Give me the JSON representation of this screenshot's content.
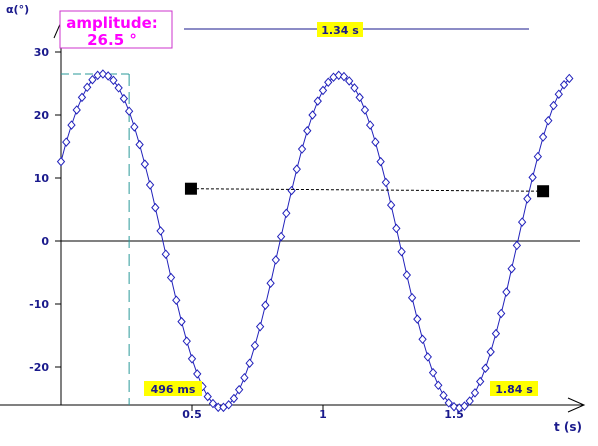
{
  "chart_data": {
    "type": "scatter",
    "title": "",
    "xlabel": "t (s)",
    "ylabel": "α(°)",
    "xlim": [
      -0.02,
      2.0
    ],
    "ylim": [
      -26,
      35
    ],
    "x_ticks": [
      {
        "value": 0.5,
        "label": "0.5"
      },
      {
        "value": 1.0,
        "label": "1"
      },
      {
        "value": 1.5,
        "label": "1.5"
      }
    ],
    "y_ticks": [
      {
        "value": 30,
        "label": "30"
      },
      {
        "value": 20,
        "label": "20"
      },
      {
        "value": 10,
        "label": "10"
      },
      {
        "value": 0,
        "label": "0"
      },
      {
        "value": -10,
        "label": "-10"
      },
      {
        "value": -20,
        "label": "-20"
      }
    ],
    "grid": false,
    "series": [
      {
        "marker": "diamond",
        "color": "#2222bb",
        "x": [
          0.0,
          0.02,
          0.04,
          0.06,
          0.08,
          0.1,
          0.12,
          0.14,
          0.16,
          0.18,
          0.2,
          0.22,
          0.24,
          0.26,
          0.28,
          0.3,
          0.32,
          0.34,
          0.36,
          0.38,
          0.4,
          0.42,
          0.44,
          0.46,
          0.48,
          0.5,
          0.52,
          0.54,
          0.56,
          0.58,
          0.6,
          0.62,
          0.64,
          0.66,
          0.68,
          0.7,
          0.72,
          0.74,
          0.76,
          0.78,
          0.8,
          0.82,
          0.84,
          0.86,
          0.88,
          0.9,
          0.92,
          0.94,
          0.96,
          0.98,
          1.0,
          1.02,
          1.04,
          1.06,
          1.08,
          1.1,
          1.12,
          1.14,
          1.16,
          1.18,
          1.2,
          1.22,
          1.24,
          1.26,
          1.28,
          1.3,
          1.32,
          1.34,
          1.36,
          1.38,
          1.4,
          1.42,
          1.44,
          1.46,
          1.48,
          1.5,
          1.52,
          1.54,
          1.56,
          1.58,
          1.6,
          1.62,
          1.64,
          1.66,
          1.68,
          1.7,
          1.72,
          1.74,
          1.76,
          1.78,
          1.8,
          1.82,
          1.84,
          1.86,
          1.88,
          1.9,
          1.92,
          1.94
        ],
        "y": [
          12.6,
          15.7,
          18.4,
          20.8,
          22.8,
          24.4,
          25.6,
          26.3,
          26.5,
          26.2,
          25.5,
          24.3,
          22.6,
          20.6,
          18.1,
          15.3,
          12.2,
          8.9,
          5.3,
          1.6,
          -2.1,
          -5.8,
          -9.4,
          -12.8,
          -15.9,
          -18.7,
          -21.1,
          -23.1,
          -24.7,
          -25.8,
          -26.4,
          -26.4,
          -26.0,
          -25.0,
          -23.6,
          -21.7,
          -19.4,
          -16.6,
          -13.6,
          -10.2,
          -6.7,
          -3.0,
          0.7,
          4.4,
          8.0,
          11.4,
          14.6,
          17.5,
          20.0,
          22.2,
          23.9,
          25.2,
          26.0,
          26.3,
          26.1,
          25.4,
          24.3,
          22.8,
          20.8,
          18.4,
          15.7,
          12.6,
          9.3,
          5.7,
          2.0,
          -1.7,
          -5.4,
          -9.0,
          -12.4,
          -15.6,
          -18.4,
          -20.9,
          -22.9,
          -24.5,
          -25.7,
          -26.3,
          -26.5,
          -26.2,
          -25.4,
          -24.1,
          -22.3,
          -20.2,
          -17.6,
          -14.7,
          -11.5,
          -8.1,
          -4.4,
          -0.7,
          3.0,
          6.7,
          10.1,
          13.4,
          16.5,
          19.1,
          21.5,
          23.3,
          24.8,
          25.8
        ]
      }
    ],
    "annotations": {
      "amplitude_label": "amplitude:",
      "amplitude_value": "26.5 °",
      "amplitude_peak": {
        "t": 0.26,
        "alpha": 26.5
      },
      "period_label": "1.34 s",
      "period_span": [
        0.5,
        1.84
      ],
      "cursor_label_1": "496 ms",
      "cursor_label_2": "1.84 s",
      "cursors": [
        {
          "t": 0.496,
          "alpha": 8.3
        },
        {
          "t": 1.84,
          "alpha": 7.9
        }
      ]
    }
  },
  "colors": {
    "series": "#2222bb",
    "axis": "#000000",
    "label_highlight": "#ffff00",
    "amplitude_text": "#ff00ff",
    "amplitude_border": "#cc33cc",
    "guide": "#2a9a9a"
  }
}
